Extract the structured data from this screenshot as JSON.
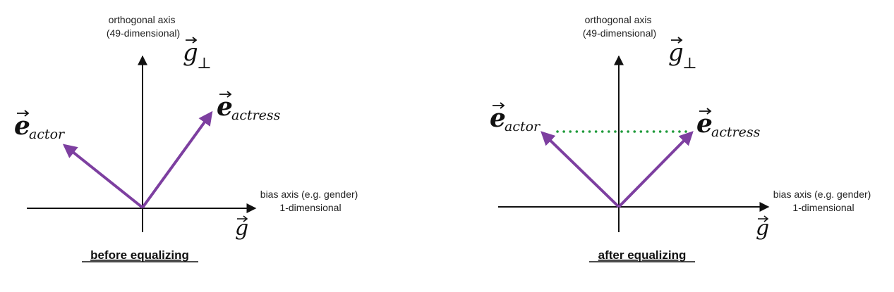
{
  "colors": {
    "axis": "#111111",
    "vector": "#7d3fa0",
    "equal_line": "#1f9a3a"
  },
  "left_panel": {
    "orthogonal_label_line1": "orthogonal axis",
    "orthogonal_label_line2": "(49-dimensional)",
    "orthogonal_symbol": "g",
    "orthogonal_subscript": "⊥",
    "bias_label_line1": "bias axis (e.g. gender)",
    "bias_label_line2": "1-dimensional",
    "bias_symbol": "g",
    "vector_left_symbol": "e",
    "vector_left_subscript": "actor",
    "vector_right_symbol": "e",
    "vector_right_subscript": "actress",
    "caption": "before equalizing"
  },
  "right_panel": {
    "orthogonal_label_line1": "orthogonal axis",
    "orthogonal_label_line2": "(49-dimensional)",
    "orthogonal_symbol": "g",
    "orthogonal_subscript": "⊥",
    "bias_label_line1": "bias axis (e.g. gender)",
    "bias_label_line2": "1-dimensional",
    "bias_symbol": "g",
    "vector_left_symbol": "e",
    "vector_left_subscript": "actor",
    "vector_right_symbol": "e",
    "vector_right_subscript": "actress",
    "caption": "after equalizing"
  }
}
